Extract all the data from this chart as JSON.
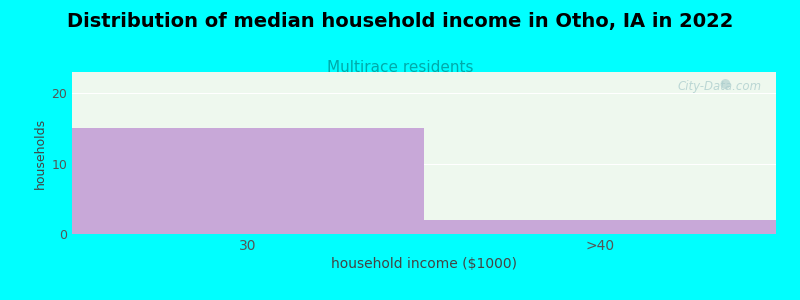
{
  "title": "Distribution of median household income in Otho, IA in 2022",
  "subtitle": "Multirace residents",
  "xlabel": "household income ($1000)",
  "ylabel": "households",
  "categories": [
    "30",
    ">40"
  ],
  "values": [
    15,
    2
  ],
  "bar_color": "#c8a8d8",
  "background_color": "#00ffff",
  "plot_bg_top": "#eaf5ea",
  "plot_bg_bottom": "#f5fff5",
  "ylim": [
    0,
    23
  ],
  "yticks": [
    0,
    10,
    20
  ],
  "title_fontsize": 14,
  "subtitle_fontsize": 11,
  "subtitle_color": "#00aaaa",
  "xlabel_fontsize": 10,
  "ylabel_fontsize": 9,
  "watermark": "City-Data.com",
  "watermark_color": "#aacccc",
  "grid_color": "#dddddd"
}
